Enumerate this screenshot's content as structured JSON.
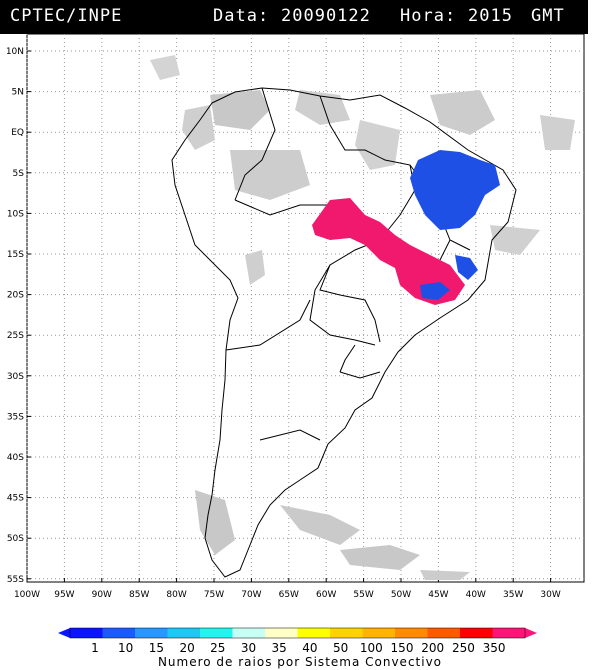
{
  "header": {
    "agency": "CPTEC/INPE",
    "date_label": "Data:",
    "date_value": "20090122",
    "time_label": "Hora:",
    "time_value": "2015",
    "tz": "GMT"
  },
  "map": {
    "lon_range": [
      -100,
      -25
    ],
    "lat_range": [
      -56,
      13
    ],
    "lat_labels": [
      "10N",
      "5N",
      "EQ",
      "5S",
      "10S",
      "15S",
      "20S",
      "25S",
      "30S",
      "35S",
      "40S",
      "45S",
      "50S",
      "55S"
    ],
    "lon_labels": [
      "100W",
      "95W",
      "90W",
      "85W",
      "80W",
      "75W",
      "70W",
      "65W",
      "60W",
      "55W",
      "50W",
      "45W",
      "40W",
      "35W",
      "30W"
    ],
    "gridlines": "dotted",
    "cloud_color": "#c8c8c8",
    "convective_systems": [
      {
        "region": "northeast-brazil",
        "color": "#1e50e6"
      },
      {
        "region": "central-brazil",
        "color": "#f0196e"
      },
      {
        "region": "eastern-brazil",
        "color": "#1e50e6"
      }
    ]
  },
  "legend": {
    "title": "Numero de raios por Sistema Convectivo",
    "labels": [
      "1",
      "10",
      "15",
      "20",
      "25",
      "30",
      "35",
      "40",
      "50",
      "100",
      "150",
      "200",
      "250",
      "350"
    ],
    "colors": [
      "#0a14ff",
      "#1a5aff",
      "#2a96ff",
      "#1ec8f0",
      "#22f5f0",
      "#c8fff5",
      "#ffffc8",
      "#ffff00",
      "#ffd200",
      "#ffb400",
      "#ff8c00",
      "#ff5a00",
      "#ff0000",
      "#ff1478"
    ]
  }
}
